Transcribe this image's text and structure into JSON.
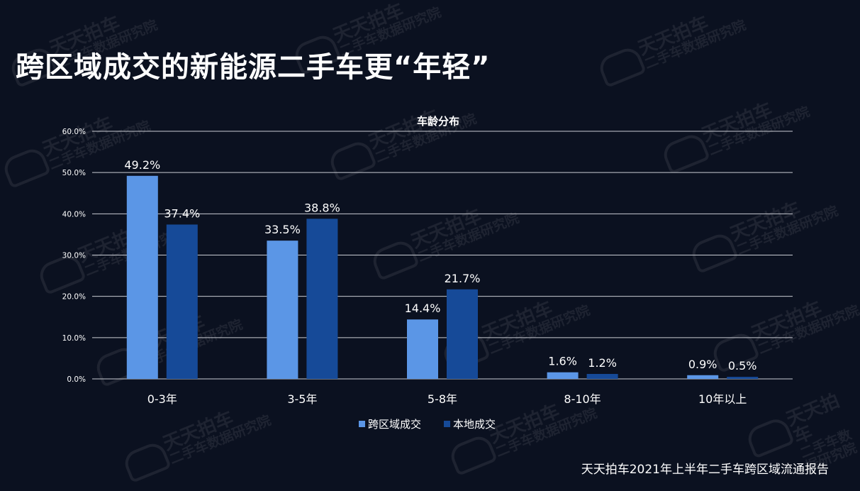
{
  "page": {
    "title": "跨区域成交的新能源二手车更“年轻”",
    "footer": "天天拍车2021年上半年二手车跨区域流通报告",
    "watermark": {
      "line1": "天天拍车",
      "line2": "二手车数据研究院"
    }
  },
  "colors": {
    "background": "#0b1120",
    "series1": "#5b96e6",
    "series2": "#164a98",
    "grid": "#c9ccd3",
    "text": "#ffffff"
  },
  "chart_data": {
    "type": "bar",
    "title": "车龄分布",
    "xlabel": "",
    "ylabel": "",
    "categories": [
      "0-3年",
      "3-5年",
      "5-8年",
      "8-10年",
      "10年以上"
    ],
    "series": [
      {
        "name": "跨区域成交",
        "values": [
          49.2,
          33.5,
          14.4,
          1.6,
          0.9
        ],
        "labels": [
          "49.2%",
          "33.5%",
          "14.4%",
          "1.6%",
          "0.9%"
        ]
      },
      {
        "name": "本地成交",
        "values": [
          37.4,
          38.8,
          21.7,
          1.2,
          0.5
        ],
        "labels": [
          "37.4%",
          "38.8%",
          "21.7%",
          "1.2%",
          "0.5%"
        ]
      }
    ],
    "ylim": [
      0,
      60
    ],
    "yticks": [
      "0.0%",
      "10.0%",
      "20.0%",
      "30.0%",
      "40.0%",
      "50.0%",
      "60.0%"
    ],
    "grid": true,
    "legend": "bottom-center"
  }
}
